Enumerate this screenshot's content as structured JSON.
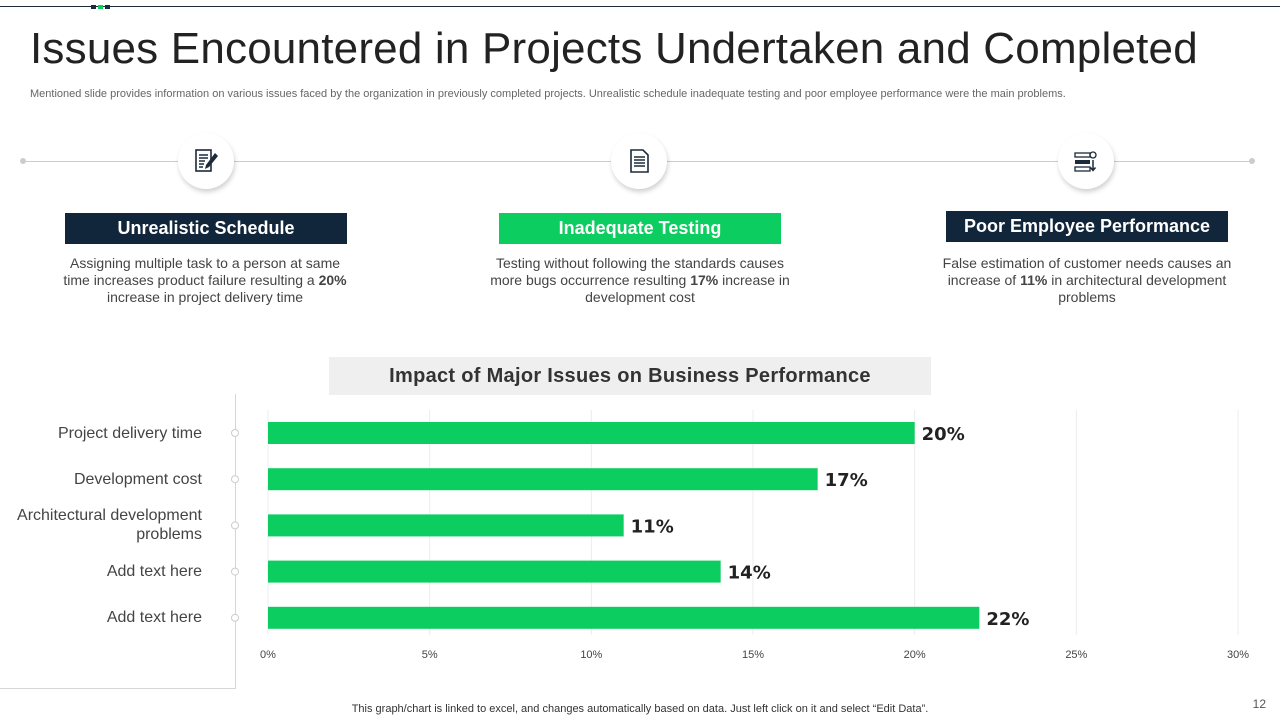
{
  "title": "Issues Encountered in Projects Undertaken and Completed",
  "subtitle": "Mentioned slide provides information on various issues faced by the organization in previously completed projects. Unrealistic schedule inadequate testing and poor employee performance were the main problems.",
  "colors": {
    "navy": "#11263a",
    "green": "#0ccd5f",
    "bar": "#0ccd5f"
  },
  "issues": [
    {
      "icon": "document-pen-icon",
      "title": "Unrealistic Schedule",
      "color": "#11263a",
      "desc_pre": "Assigning multiple task to a person at same time increases product failure resulting a ",
      "desc_bold": "20%",
      "desc_post": " increase in project delivery time"
    },
    {
      "icon": "document-list-icon",
      "title": "Inadequate Testing",
      "color": "#0ccd5f",
      "desc_pre": "Testing without following the standards causes more bugs occurrence resulting ",
      "desc_bold": "17%",
      "desc_post": " increase in development cost"
    },
    {
      "icon": "settings-list-icon",
      "title": "Poor Employee Performance",
      "color": "#11263a",
      "desc_pre": "False estimation of customer needs causes an increase of ",
      "desc_bold": "11%",
      "desc_post": " in architectural development problems"
    }
  ],
  "chart_data": {
    "type": "bar",
    "orientation": "horizontal",
    "title": "Impact of Major Issues on Business Performance",
    "categories": [
      "Project delivery time",
      "Development cost",
      "Architectural development problems",
      "Add text here",
      "Add text here"
    ],
    "values": [
      20,
      17,
      11,
      14,
      22
    ],
    "data_labels": [
      "20%",
      "17%",
      "11%",
      "14%",
      "22%"
    ],
    "xlim": [
      0,
      30
    ],
    "x_ticks": [
      "0%",
      "5%",
      "10%",
      "15%",
      "20%",
      "25%",
      "30%"
    ],
    "grid": true,
    "color": "#0ccd5f"
  },
  "footer": "This graph/chart is linked to excel,  and changes automatically based on data. Just left click on it and select “Edit Data”.",
  "page_number": "12"
}
